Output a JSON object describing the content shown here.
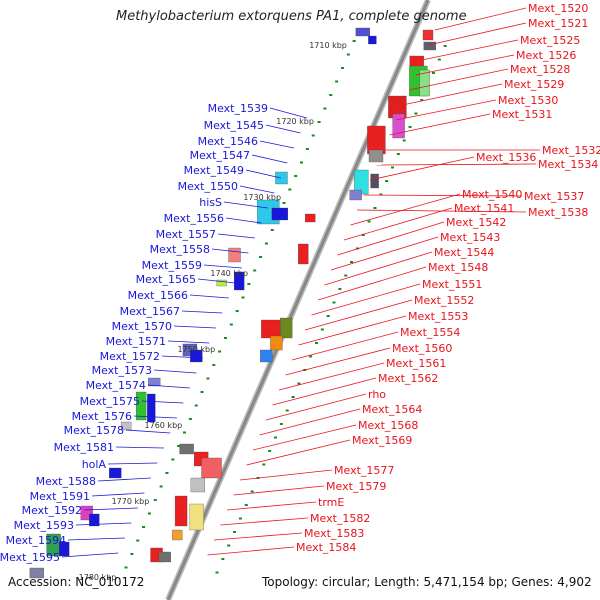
{
  "title": "Methylobacterium extorquens PA1, complete genome",
  "footer": {
    "accession": "Accession: NC_010172",
    "topology": "Topology: circular; Length: 5,471,154 bp; Genes: 4,902"
  },
  "colors": {
    "right": "#e8141c",
    "left": "#1818d8",
    "backbone": "#888888",
    "tick": "#1a8a1a"
  },
  "kbp_markers": [
    {
      "label": "1710 kbp",
      "pos": 1710
    },
    {
      "label": "1720 kbp",
      "pos": 1720
    },
    {
      "label": "1730 kbp",
      "pos": 1730
    },
    {
      "label": "1740 kbp",
      "pos": 1740
    },
    {
      "label": "1750 kbp",
      "pos": 1750
    },
    {
      "label": "1760 kbp",
      "pos": 1760
    },
    {
      "label": "1770 kbp",
      "pos": 1770
    },
    {
      "label": "1780 kbp",
      "pos": 1780
    }
  ],
  "right_genes": [
    "Mext_1520",
    "Mext_1521",
    "Mext_1525",
    "Mext_1526",
    "Mext_1528",
    "Mext_1529",
    "Mext_1530",
    "Mext_1531",
    "Mext_1532",
    "Mext_1534",
    "Mext_1536",
    "Mext_1537",
    "Mext_1538",
    "Mext_1540",
    "Mext_1541",
    "Mext_1542",
    "Mext_1543",
    "Mext_1544",
    "Mext_1548",
    "Mext_1551",
    "Mext_1552",
    "Mext_1553",
    "Mext_1554",
    "Mext_1560",
    "Mext_1561",
    "Mext_1562",
    "rho",
    "Mext_1564",
    "Mext_1568",
    "Mext_1569",
    "Mext_1577",
    "Mext_1579",
    "trmE",
    "Mext_1582",
    "Mext_1583",
    "Mext_1584"
  ],
  "left_genes": [
    "Mext_1539",
    "Mext_1545",
    "Mext_1546",
    "Mext_1547",
    "Mext_1549",
    "Mext_1550",
    "hisS",
    "Mext_1556",
    "Mext_1557",
    "Mext_1558",
    "Mext_1559",
    "Mext_1565",
    "Mext_1566",
    "Mext_1567",
    "Mext_1570",
    "Mext_1571",
    "Mext_1572",
    "Mext_1573",
    "Mext_1574",
    "Mext_1575",
    "Mext_1576",
    "Mext_1578",
    "Mext_1581",
    "holA",
    "Mext_1588",
    "Mext_1591",
    "Mext_1592",
    "Mext_1593",
    "Mext_1594",
    "Mext_1595"
  ]
}
